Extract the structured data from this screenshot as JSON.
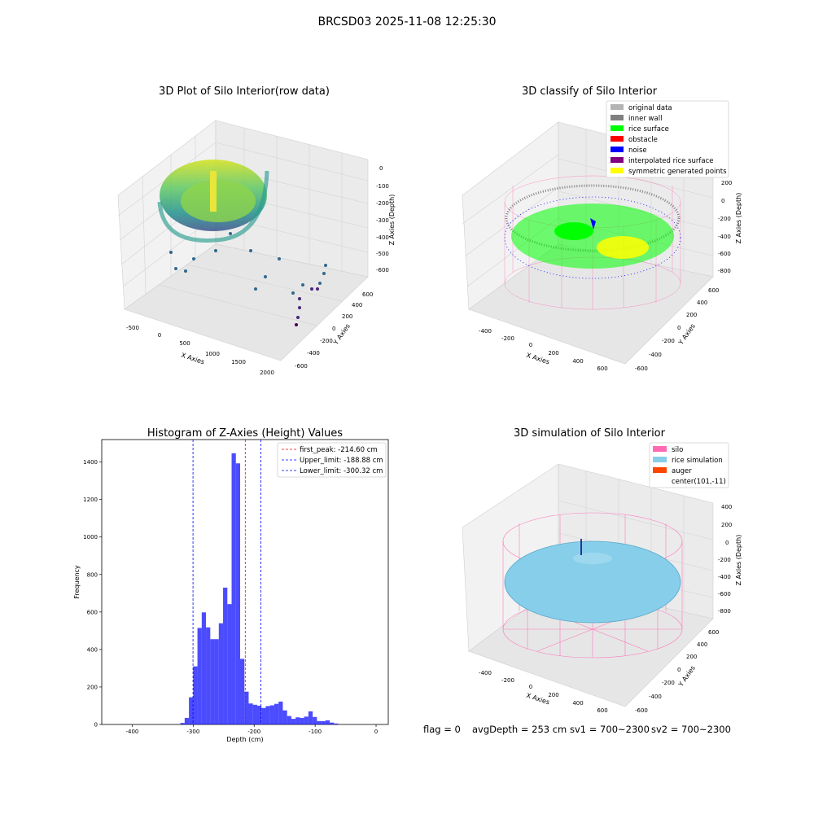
{
  "figure": {
    "suptitle": "BRCSD03 2025-11-08 12:25:30",
    "status": {
      "flag": "flag = 0",
      "avg_depth": "avgDepth = 253 cm",
      "sv1": "sv1 = 700~2300",
      "sv2": "sv2 = 700~2300"
    }
  },
  "chart_data": [
    {
      "type": "scatter",
      "projection": "3d",
      "title": "3D Plot of Silo Interior(row data)",
      "xlabel": "X Axies",
      "ylabel": "Y Axies",
      "zlabel": "Z Axies (Depth)",
      "x_ticks": [
        "-500",
        "0",
        "500",
        "1000",
        "1500",
        "2000"
      ],
      "y_ticks": [
        "-600",
        "-400",
        "-200",
        "0",
        "200",
        "400",
        "600"
      ],
      "z_ticks": [
        "0",
        "-100",
        "-200",
        "-300",
        "-400",
        "-500",
        "-600"
      ],
      "xlim": [
        -600,
        2100
      ],
      "ylim": [
        -650,
        650
      ],
      "zlim": [
        -650,
        30
      ],
      "colormap": "viridis",
      "description_points": {
        "ring": {
          "center": [
            100,
            0
          ],
          "radius": 520,
          "z_range": [
            -300,
            -120
          ]
        },
        "outliers": [
          [
            300,
            -300,
            -500
          ],
          [
            600,
            -400,
            -520
          ],
          [
            900,
            -500,
            -560
          ],
          [
            1300,
            -600,
            -590
          ],
          [
            1700,
            -500,
            -610
          ],
          [
            1900,
            -600,
            -620
          ],
          [
            2000,
            -400,
            -630
          ]
        ]
      },
      "grid": true
    },
    {
      "type": "scatter",
      "projection": "3d",
      "title": "3D classify of Silo Interior",
      "xlabel": "X Axies",
      "ylabel": "Y Axies",
      "zlabel": "Z Axies (Depth)",
      "x_ticks": [
        "-400",
        "-200",
        "0",
        "200",
        "400",
        "600"
      ],
      "y_ticks": [
        "-600",
        "-400",
        "-200",
        "0",
        "200",
        "400",
        "600"
      ],
      "z_ticks": [
        "200",
        "0",
        "-200",
        "-400",
        "-600",
        "-800"
      ],
      "xlim": [
        -500,
        700
      ],
      "ylim": [
        -650,
        650
      ],
      "zlim": [
        -900,
        250
      ],
      "legend_location": "top-right",
      "legend": [
        {
          "label": "original data",
          "color": "#b3b3b3"
        },
        {
          "label": "inner wall",
          "color": "#808080"
        },
        {
          "label": "rice surface",
          "color": "#00ff00"
        },
        {
          "label": "obstacle",
          "color": "#ff0000"
        },
        {
          "label": "noise",
          "color": "#0000ff"
        },
        {
          "label": "interpolated rice surface",
          "color": "#800080"
        },
        {
          "label": "symmetric generated points",
          "color": "#ffff00"
        }
      ],
      "wireframe_color": "#ff69b4",
      "grid": true
    },
    {
      "type": "bar",
      "title": "Histogram of Z-Axies (Height) Values",
      "xlabel": "Depth (cm)",
      "ylabel": "Frequency",
      "xlim": [
        -450,
        20
      ],
      "ylim": [
        0,
        1520
      ],
      "x_ticks": [
        -400,
        -300,
        -200,
        -100,
        0
      ],
      "y_ticks": [
        0,
        200,
        400,
        600,
        800,
        1000,
        1200,
        1400
      ],
      "bar_color": "#0000ff",
      "bin_width": 7,
      "bins": [
        {
          "x0": -321,
          "value": 8
        },
        {
          "x0": -314,
          "value": 35
        },
        {
          "x0": -307,
          "value": 145
        },
        {
          "x0": -300,
          "value": 310
        },
        {
          "x0": -293,
          "value": 515
        },
        {
          "x0": -286,
          "value": 598
        },
        {
          "x0": -279,
          "value": 518
        },
        {
          "x0": -272,
          "value": 455
        },
        {
          "x0": -265,
          "value": 455
        },
        {
          "x0": -258,
          "value": 540
        },
        {
          "x0": -251,
          "value": 730
        },
        {
          "x0": -244,
          "value": 642
        },
        {
          "x0": -237,
          "value": 1447
        },
        {
          "x0": -230,
          "value": 1393
        },
        {
          "x0": -223,
          "value": 350
        },
        {
          "x0": -216,
          "value": 175
        },
        {
          "x0": -209,
          "value": 112
        },
        {
          "x0": -202,
          "value": 105
        },
        {
          "x0": -195,
          "value": 100
        },
        {
          "x0": -188,
          "value": 88
        },
        {
          "x0": -181,
          "value": 98
        },
        {
          "x0": -174,
          "value": 102
        },
        {
          "x0": -167,
          "value": 110
        },
        {
          "x0": -160,
          "value": 122
        },
        {
          "x0": -153,
          "value": 75
        },
        {
          "x0": -146,
          "value": 45
        },
        {
          "x0": -139,
          "value": 30
        },
        {
          "x0": -132,
          "value": 38
        },
        {
          "x0": -125,
          "value": 35
        },
        {
          "x0": -118,
          "value": 42
        },
        {
          "x0": -111,
          "value": 70
        },
        {
          "x0": -104,
          "value": 40
        },
        {
          "x0": -97,
          "value": 18
        },
        {
          "x0": -90,
          "value": 18
        },
        {
          "x0": -83,
          "value": 22
        },
        {
          "x0": -76,
          "value": 10
        },
        {
          "x0": -69,
          "value": 5
        }
      ],
      "vlines": [
        {
          "x": -214.6,
          "label": "first_peak: -214.60 cm",
          "color": "#ff0000"
        },
        {
          "x": -188.88,
          "label": "Upper_limit: -188.88 cm",
          "color": "#0000ff"
        },
        {
          "x": -300.32,
          "label": "Lower_limit: -300.32 cm",
          "color": "#0000ff"
        }
      ],
      "legend_location": "top-right",
      "grid": false
    },
    {
      "type": "surface",
      "projection": "3d",
      "title": "3D simulation of Silo Interior",
      "xlabel": "X Axies",
      "ylabel": "Y Axies",
      "zlabel": "Z Axies (Depth)",
      "x_ticks": [
        "-400",
        "-200",
        "0",
        "200",
        "400",
        "600"
      ],
      "y_ticks": [
        "-600",
        "-400",
        "-200",
        "0",
        "200",
        "400",
        "600"
      ],
      "z_ticks": [
        "400",
        "200",
        "0",
        "-200",
        "-400",
        "-600",
        "-800"
      ],
      "legend_location": "top-right",
      "legend": [
        {
          "label": "silo",
          "color": "#ff69b4"
        },
        {
          "label": "rice simulation",
          "color": "#87ceeb"
        },
        {
          "label": "auger",
          "color": "#ff4500"
        },
        {
          "label": "center(101,-11)",
          "color": "none"
        }
      ],
      "grid": true
    }
  ]
}
